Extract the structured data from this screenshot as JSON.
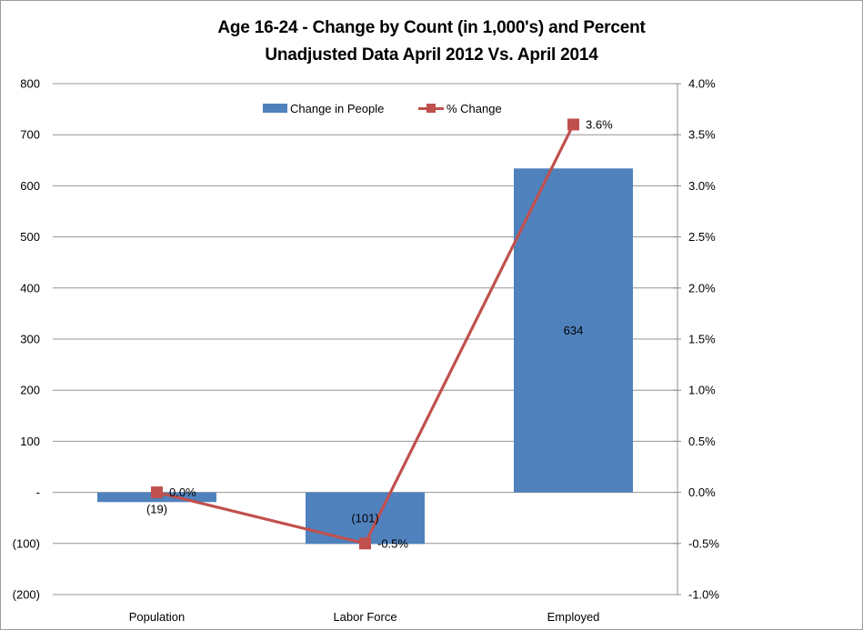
{
  "title": {
    "line1": "Age 16-24 - Change by Count (in 1,000's) and Percent",
    "line2": "Unadjusted Data April 2012 Vs. April 2014"
  },
  "colors": {
    "bar": "#4f81bd",
    "line": "#c0504d",
    "gridline": "#949494",
    "axis": "#8c8c8c",
    "border": "#9b9b9b",
    "text": "#000000",
    "background": "#ffffff"
  },
  "chart_data": {
    "type": "combo_bar_line_dual_axis",
    "categories": [
      "Population",
      "Labor Force",
      "Employed"
    ],
    "series": [
      {
        "name": "Change in People",
        "type": "bar",
        "axis": "left",
        "values": [
          -19,
          -101,
          634
        ],
        "data_labels": [
          "(19)",
          "(101)",
          "634"
        ],
        "color": "#4f81bd"
      },
      {
        "name": "% Change",
        "type": "line",
        "axis": "right",
        "values": [
          0.0,
          -0.5,
          3.6
        ],
        "data_labels": [
          "0.0%",
          "-0.5%",
          "3.6%"
        ],
        "color": "#c0504d"
      }
    ],
    "left_axis": {
      "min": -200,
      "max": 800,
      "step": 100,
      "tick_labels": [
        "800",
        "700",
        "600",
        "500",
        "400",
        "300",
        "200",
        "100",
        "-",
        "(100)",
        "(200)"
      ]
    },
    "right_axis": {
      "min": -1.0,
      "max": 4.0,
      "step": 0.5,
      "tick_labels": [
        "4.0%",
        "3.5%",
        "3.0%",
        "2.5%",
        "2.0%",
        "1.5%",
        "1.0%",
        "0.5%",
        "0.0%",
        "-0.5%",
        "-1.0%"
      ]
    },
    "legend": {
      "position": "top",
      "entries": [
        "Change in People",
        "% Change"
      ]
    },
    "gridlines": true
  }
}
